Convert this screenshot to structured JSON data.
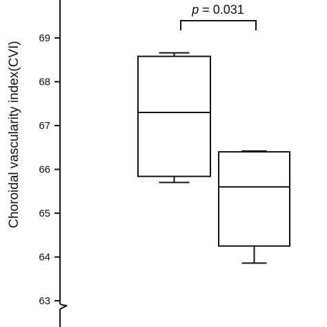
{
  "chart_data": {
    "type": "box",
    "title": "",
    "xlabel": "",
    "ylabel": "Choroidal vascularity index(CVI)",
    "ylim": [
      62.8,
      69.9
    ],
    "yticks": [
      63,
      64,
      65,
      66,
      67,
      68,
      69
    ],
    "axis_break": true,
    "grid": false,
    "legend": "none",
    "series": [
      {
        "min": 65.7,
        "q1": 65.84,
        "median": 67.3,
        "q3": 68.58,
        "max": 68.66
      },
      {
        "min": 63.86,
        "q1": 64.25,
        "median": 65.6,
        "q3": 66.4,
        "max": 66.42
      }
    ],
    "annotation": {
      "p_symbol": "p",
      "p_rest": " = 0.031"
    }
  }
}
